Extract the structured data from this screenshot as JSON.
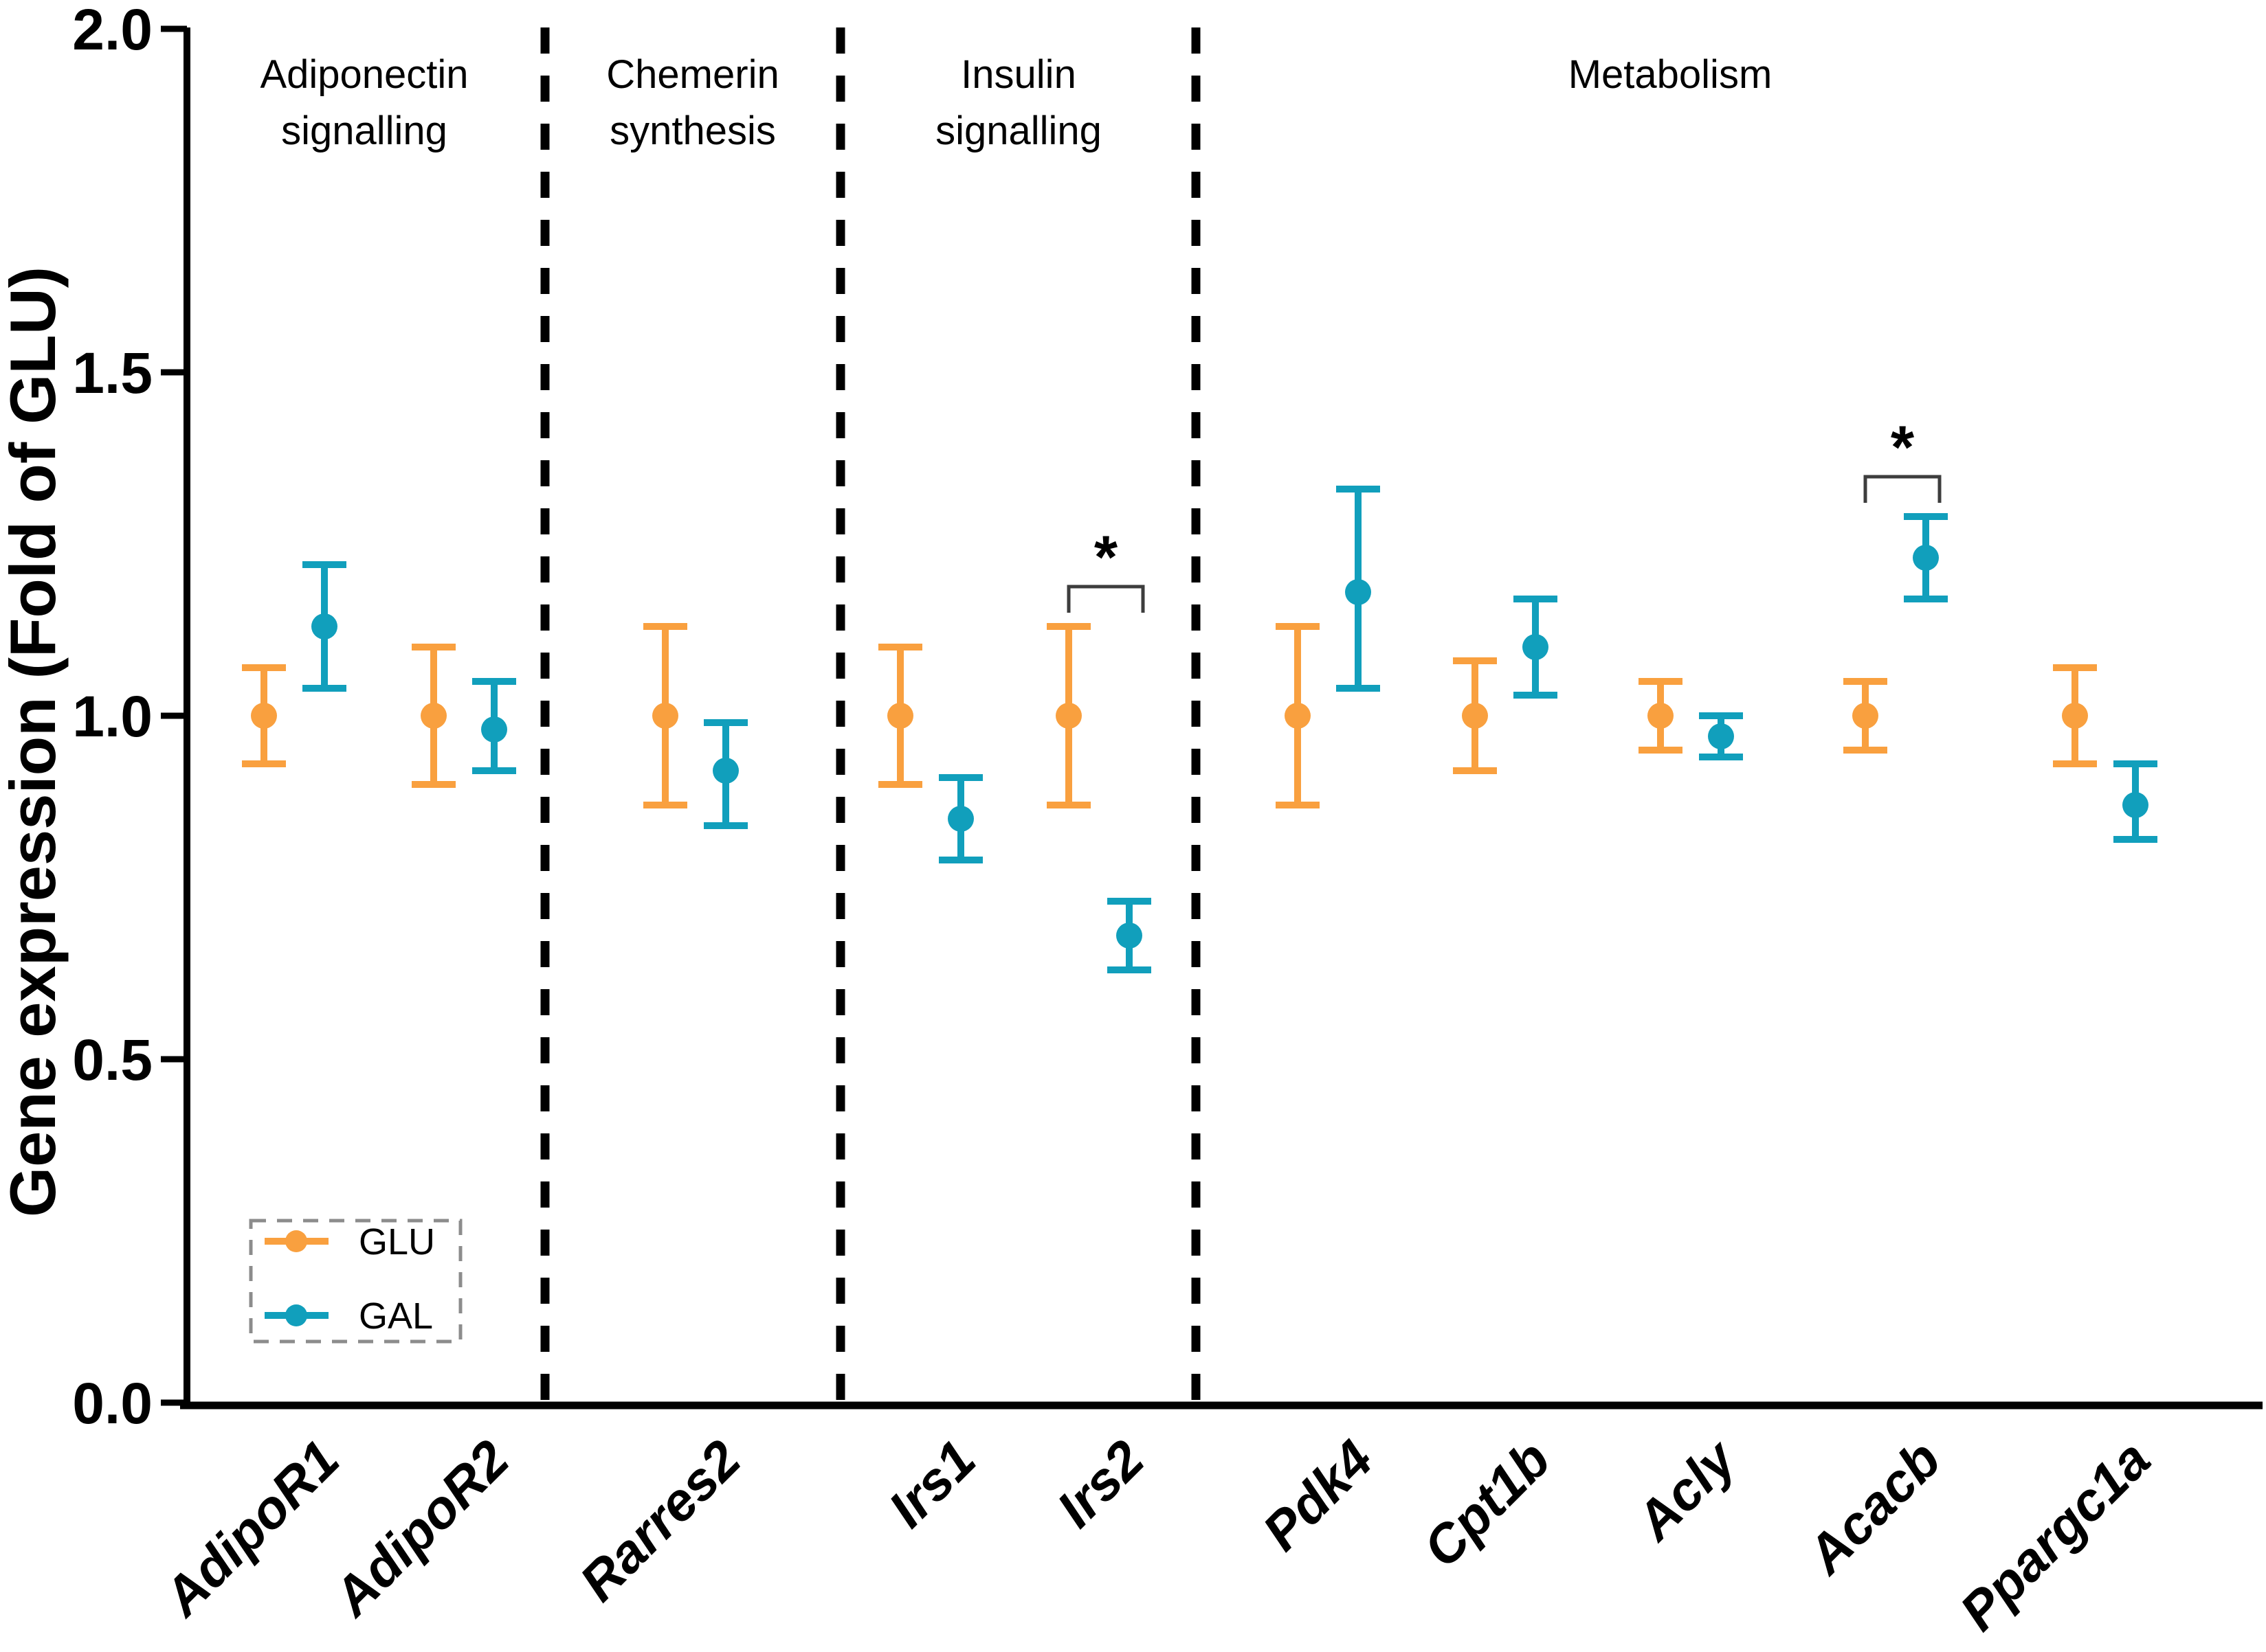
{
  "chart_data": {
    "type": "scatter",
    "subtype": "point-errorbar",
    "title": "",
    "xlabel": "",
    "ylabel": "Gene expression (Fold of GLU)",
    "ylim": [
      0.0,
      2.0
    ],
    "yticks": [
      0,
      0.5,
      1,
      1.5,
      2
    ],
    "ytick_labels": [
      "0.0",
      "0.5",
      "1.0",
      "1.5",
      "2.0"
    ],
    "grid": false,
    "categories": [
      "AdipoR1",
      "AdipoR2",
      "Rarres2",
      "Irs1",
      "Irs2",
      "Pdk4",
      "Cpt1b",
      "Acly",
      "Acacb",
      "Ppargc1a"
    ],
    "sections": [
      {
        "label": "Adiponectin signalling",
        "lines": [
          "Adiponectin",
          "signalling"
        ],
        "genes": [
          "AdipoR1",
          "AdipoR2"
        ]
      },
      {
        "label": "Chemerin synthesis",
        "lines": [
          "Chemerin",
          "synthesis"
        ],
        "genes": [
          "Rarres2"
        ]
      },
      {
        "label": "Insulin signalling",
        "lines": [
          "Insulin",
          "signalling"
        ],
        "genes": [
          "Irs1",
          "Irs2"
        ]
      },
      {
        "label": "Metabolism",
        "lines": [
          "Metabolism"
        ],
        "genes": [
          "Pdk4",
          "Cpt1b",
          "Acly",
          "Acacb",
          "Ppargc1a"
        ]
      }
    ],
    "series": [
      {
        "name": "GLU",
        "color": "#F9A03F",
        "means": [
          1.0,
          1.0,
          1.0,
          1.0,
          1.0,
          1.0,
          1.0,
          1.0,
          1.0,
          1.0
        ],
        "err_lo": [
          0.93,
          0.9,
          0.87,
          0.9,
          0.87,
          0.87,
          0.92,
          0.95,
          0.95,
          0.93
        ],
        "err_hi": [
          1.07,
          1.1,
          1.13,
          1.1,
          1.13,
          1.13,
          1.08,
          1.05,
          1.05,
          1.07
        ]
      },
      {
        "name": "GAL",
        "color": "#119FBC",
        "means": [
          1.13,
          0.98,
          0.92,
          0.85,
          0.68,
          1.18,
          1.1,
          0.97,
          1.23,
          0.87
        ],
        "err_lo": [
          1.04,
          0.92,
          0.84,
          0.79,
          0.63,
          1.04,
          1.03,
          0.94,
          1.17,
          0.82
        ],
        "err_hi": [
          1.22,
          1.05,
          0.99,
          0.91,
          0.73,
          1.33,
          1.17,
          1.0,
          1.29,
          0.93
        ]
      }
    ],
    "significance_markers": [
      {
        "gene": "Irs2",
        "symbol": "*"
      },
      {
        "gene": "Acacb",
        "symbol": "*"
      }
    ],
    "legend": {
      "position": "bottom-left",
      "items": [
        "GLU",
        "GAL"
      ]
    },
    "colors": {
      "axis": "#000000",
      "separator": "#000000",
      "significance": "#3d3d3d",
      "legend_border": "#8c8c8c",
      "text": "#000000"
    }
  }
}
